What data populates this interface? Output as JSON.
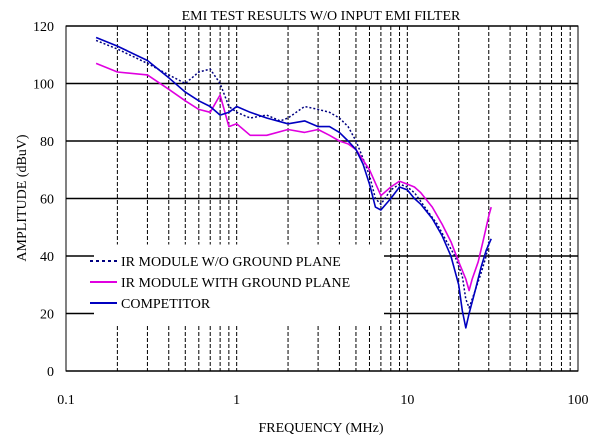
{
  "chart_data": {
    "type": "line",
    "title": "EMI TEST RESULTS W/O INPUT EMI FILTER",
    "xlabel": "FREQUENCY (MHz)",
    "ylabel": "AMPLITUDE (dBuV)",
    "xscale": "log",
    "xlim": [
      0.1,
      100
    ],
    "ylim": [
      0,
      120
    ],
    "x_ticks": [
      {
        "value": 0.1,
        "label": "0.1"
      },
      {
        "value": 1,
        "label": "1"
      },
      {
        "value": 10,
        "label": "10"
      },
      {
        "value": 100,
        "label": "100"
      }
    ],
    "y_ticks": [
      {
        "value": 0,
        "label": "0"
      },
      {
        "value": 20,
        "label": "20"
      },
      {
        "value": 40,
        "label": "40"
      },
      {
        "value": 60,
        "label": "60"
      },
      {
        "value": 80,
        "label": "80"
      },
      {
        "value": 100,
        "label": "100"
      },
      {
        "value": 120,
        "label": "120"
      }
    ],
    "grid": true,
    "legend_position": "lower-left",
    "series": [
      {
        "name": "IR MODULE W/O GROUND PLANE",
        "color": "#000080",
        "dash": "dotted",
        "points": [
          [
            0.15,
            115
          ],
          [
            0.2,
            112
          ],
          [
            0.3,
            107
          ],
          [
            0.4,
            103
          ],
          [
            0.5,
            100
          ],
          [
            0.6,
            104
          ],
          [
            0.7,
            105
          ],
          [
            0.8,
            100
          ],
          [
            0.9,
            92
          ],
          [
            1.0,
            90
          ],
          [
            1.2,
            88
          ],
          [
            1.5,
            89
          ],
          [
            1.8,
            87
          ],
          [
            2.0,
            88
          ],
          [
            2.5,
            92
          ],
          [
            3.0,
            91
          ],
          [
            3.5,
            90
          ],
          [
            4.0,
            88
          ],
          [
            4.5,
            85
          ],
          [
            5.0,
            80
          ],
          [
            5.5,
            74
          ],
          [
            6.0,
            68
          ],
          [
            6.5,
            60
          ],
          [
            7.0,
            58
          ],
          [
            8.0,
            63
          ],
          [
            9.0,
            65
          ],
          [
            10.0,
            64
          ],
          [
            11.0,
            62
          ],
          [
            12.0,
            59
          ],
          [
            13.0,
            56
          ],
          [
            15.0,
            51
          ],
          [
            17.0,
            45
          ],
          [
            19.0,
            40
          ],
          [
            21.0,
            33
          ],
          [
            22.0,
            25
          ],
          [
            23.0,
            22
          ],
          [
            25.0,
            28
          ],
          [
            27.0,
            34
          ],
          [
            29.0,
            40
          ],
          [
            30.0,
            45
          ]
        ]
      },
      {
        "name": "IR MODULE WITH GROUND PLANE",
        "color": "#e000e0",
        "dash": "solid",
        "points": [
          [
            0.15,
            107
          ],
          [
            0.2,
            104
          ],
          [
            0.3,
            103
          ],
          [
            0.4,
            98
          ],
          [
            0.5,
            94
          ],
          [
            0.6,
            91
          ],
          [
            0.7,
            90
          ],
          [
            0.8,
            96
          ],
          [
            0.9,
            85
          ],
          [
            1.0,
            86
          ],
          [
            1.2,
            82
          ],
          [
            1.5,
            82
          ],
          [
            2.0,
            84
          ],
          [
            2.5,
            83
          ],
          [
            3.0,
            84
          ],
          [
            3.5,
            82
          ],
          [
            4.0,
            80
          ],
          [
            4.5,
            79
          ],
          [
            5.0,
            77
          ],
          [
            6.0,
            70
          ],
          [
            7.0,
            61
          ],
          [
            8.0,
            64
          ],
          [
            9.0,
            66
          ],
          [
            10.0,
            65
          ],
          [
            11.0,
            64
          ],
          [
            12.0,
            62
          ],
          [
            14.0,
            57
          ],
          [
            16.0,
            51
          ],
          [
            18.0,
            45
          ],
          [
            20.0,
            38
          ],
          [
            22.0,
            32
          ],
          [
            23.0,
            28
          ],
          [
            24.0,
            32
          ],
          [
            26.0,
            38
          ],
          [
            28.0,
            46
          ],
          [
            30.0,
            54
          ],
          [
            31.0,
            57
          ]
        ]
      },
      {
        "name": "COMPETITOR",
        "color": "#0000c0",
        "dash": "solid",
        "points": [
          [
            0.15,
            116
          ],
          [
            0.2,
            113
          ],
          [
            0.3,
            108
          ],
          [
            0.4,
            102
          ],
          [
            0.5,
            97
          ],
          [
            0.6,
            94
          ],
          [
            0.7,
            92
          ],
          [
            0.8,
            89
          ],
          [
            0.9,
            90
          ],
          [
            1.0,
            92
          ],
          [
            1.2,
            90
          ],
          [
            1.5,
            88
          ],
          [
            2.0,
            86
          ],
          [
            2.5,
            87
          ],
          [
            3.0,
            85
          ],
          [
            3.5,
            85
          ],
          [
            4.0,
            83
          ],
          [
            4.5,
            80
          ],
          [
            5.0,
            77
          ],
          [
            5.5,
            72
          ],
          [
            6.0,
            65
          ],
          [
            6.5,
            57
          ],
          [
            7.0,
            56
          ],
          [
            8.0,
            60
          ],
          [
            9.0,
            64
          ],
          [
            10.0,
            63
          ],
          [
            11.0,
            60
          ],
          [
            12.0,
            58
          ],
          [
            14.0,
            53
          ],
          [
            16.0,
            47
          ],
          [
            18.0,
            40
          ],
          [
            20.0,
            30
          ],
          [
            21.0,
            21
          ],
          [
            22.0,
            15
          ],
          [
            23.0,
            20
          ],
          [
            25.0,
            28
          ],
          [
            27.0,
            36
          ],
          [
            29.0,
            42
          ],
          [
            31.0,
            46
          ]
        ]
      }
    ]
  }
}
